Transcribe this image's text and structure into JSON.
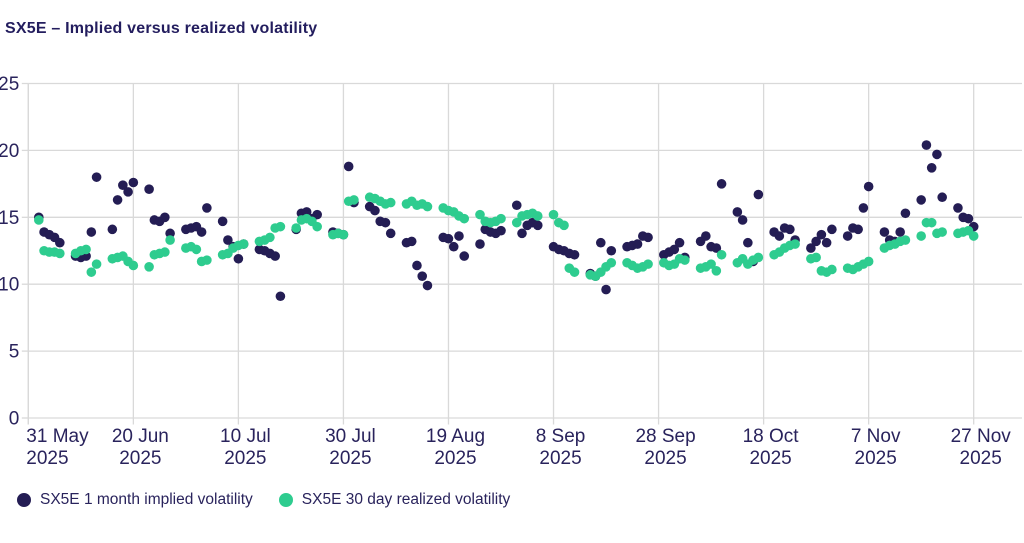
{
  "title": "SX5E – Implied versus realized volatility",
  "colors": {
    "implied": "#241d54",
    "realized": "#2ecc8f",
    "axis_text": "#29235c",
    "grid": "#d9d9d9",
    "background": "#ffffff"
  },
  "chart_data": {
    "type": "scatter",
    "title": "SX5E – Implied versus realized volatility",
    "xlabel": "",
    "ylabel": "",
    "x_unit": "calendar days since 31 May 2025",
    "ylim": [
      0,
      25
    ],
    "y_ticks": [
      0,
      5,
      10,
      15,
      20,
      25
    ],
    "x_tick_days": [
      0,
      20,
      40,
      60,
      80,
      100,
      120,
      140,
      160,
      180
    ],
    "x_tick_labels": [
      [
        "31 May",
        "2025"
      ],
      [
        "20 Jun",
        "2025"
      ],
      [
        "10 Jul",
        "2025"
      ],
      [
        "30 Jul",
        "2025"
      ],
      [
        "19 Aug",
        "2025"
      ],
      [
        "8 Sep",
        "2025"
      ],
      [
        "28 Sep",
        "2025"
      ],
      [
        "18 Oct",
        "2025"
      ],
      [
        "7 Nov",
        "2025"
      ],
      [
        "27 Nov",
        "2025"
      ]
    ],
    "grid": true,
    "legend_position": "bottom-left",
    "series": [
      {
        "name": "SX5E 1 month implied volatility",
        "color": "#241d54",
        "points": [
          [
            2,
            15.0
          ],
          [
            3,
            13.9
          ],
          [
            4,
            13.7
          ],
          [
            5,
            13.5
          ],
          [
            6,
            13.1
          ],
          [
            9,
            12.1
          ],
          [
            10,
            12.0
          ],
          [
            11,
            12.1
          ],
          [
            12,
            13.9
          ],
          [
            13,
            18.0
          ],
          [
            16,
            14.1
          ],
          [
            17,
            16.3
          ],
          [
            18,
            17.4
          ],
          [
            19,
            16.9
          ],
          [
            20,
            17.6
          ],
          [
            23,
            17.1
          ],
          [
            24,
            14.8
          ],
          [
            25,
            14.7
          ],
          [
            26,
            15.0
          ],
          [
            27,
            13.8
          ],
          [
            30,
            14.1
          ],
          [
            31,
            14.2
          ],
          [
            32,
            14.3
          ],
          [
            33,
            13.9
          ],
          [
            34,
            15.7
          ],
          [
            37,
            14.7
          ],
          [
            38,
            13.3
          ],
          [
            39,
            12.8
          ],
          [
            40,
            11.9
          ],
          [
            41,
            13.0
          ],
          [
            44,
            12.6
          ],
          [
            45,
            12.5
          ],
          [
            46,
            12.3
          ],
          [
            47,
            12.1
          ],
          [
            48,
            9.1
          ],
          [
            51,
            14.1
          ],
          [
            52,
            15.3
          ],
          [
            53,
            15.4
          ],
          [
            54,
            14.9
          ],
          [
            55,
            15.2
          ],
          [
            58,
            13.9
          ],
          [
            59,
            13.8
          ],
          [
            60,
            13.7
          ],
          [
            61,
            18.8
          ],
          [
            62,
            16.1
          ],
          [
            65,
            15.8
          ],
          [
            66,
            15.5
          ],
          [
            67,
            14.7
          ],
          [
            68,
            14.6
          ],
          [
            69,
            13.8
          ],
          [
            72,
            13.1
          ],
          [
            73,
            13.2
          ],
          [
            74,
            11.4
          ],
          [
            75,
            10.6
          ],
          [
            76,
            9.9
          ],
          [
            79,
            13.5
          ],
          [
            80,
            13.4
          ],
          [
            81,
            12.8
          ],
          [
            82,
            13.6
          ],
          [
            83,
            12.1
          ],
          [
            86,
            13.0
          ],
          [
            87,
            14.1
          ],
          [
            88,
            13.9
          ],
          [
            89,
            13.8
          ],
          [
            90,
            14.0
          ],
          [
            93,
            15.9
          ],
          [
            94,
            13.8
          ],
          [
            95,
            14.4
          ],
          [
            96,
            14.6
          ],
          [
            97,
            14.4
          ],
          [
            100,
            12.8
          ],
          [
            101,
            12.6
          ],
          [
            102,
            12.5
          ],
          [
            103,
            12.3
          ],
          [
            104,
            12.2
          ],
          [
            107,
            10.8
          ],
          [
            108,
            10.6
          ],
          [
            109,
            13.1
          ],
          [
            110,
            9.6
          ],
          [
            111,
            12.5
          ],
          [
            114,
            12.8
          ],
          [
            115,
            12.9
          ],
          [
            116,
            13.0
          ],
          [
            117,
            13.6
          ],
          [
            118,
            13.5
          ],
          [
            121,
            12.2
          ],
          [
            122,
            12.4
          ],
          [
            123,
            12.6
          ],
          [
            124,
            13.1
          ],
          [
            125,
            12.0
          ],
          [
            128,
            13.2
          ],
          [
            129,
            13.6
          ],
          [
            130,
            12.8
          ],
          [
            131,
            12.7
          ],
          [
            132,
            17.5
          ],
          [
            135,
            15.4
          ],
          [
            136,
            14.8
          ],
          [
            137,
            13.1
          ],
          [
            138,
            11.7
          ],
          [
            139,
            16.7
          ],
          [
            142,
            13.9
          ],
          [
            143,
            13.6
          ],
          [
            144,
            14.2
          ],
          [
            145,
            14.1
          ],
          [
            146,
            13.3
          ],
          [
            149,
            12.7
          ],
          [
            150,
            13.2
          ],
          [
            151,
            13.7
          ],
          [
            152,
            13.1
          ],
          [
            153,
            14.1
          ],
          [
            156,
            13.6
          ],
          [
            157,
            14.2
          ],
          [
            158,
            14.1
          ],
          [
            159,
            15.7
          ],
          [
            160,
            17.3
          ],
          [
            163,
            13.9
          ],
          [
            164,
            13.3
          ],
          [
            165,
            13.2
          ],
          [
            166,
            13.9
          ],
          [
            167,
            15.3
          ],
          [
            170,
            16.3
          ],
          [
            171,
            20.4
          ],
          [
            172,
            18.7
          ],
          [
            173,
            19.7
          ],
          [
            174,
            16.5
          ],
          [
            177,
            15.7
          ],
          [
            178,
            15.0
          ],
          [
            179,
            14.9
          ],
          [
            180,
            14.3
          ]
        ]
      },
      {
        "name": "SX5E 30 day realized volatility",
        "color": "#2ecc8f",
        "points": [
          [
            2,
            14.8
          ],
          [
            3,
            12.5
          ],
          [
            4,
            12.4
          ],
          [
            5,
            12.4
          ],
          [
            6,
            12.3
          ],
          [
            9,
            12.3
          ],
          [
            10,
            12.5
          ],
          [
            11,
            12.6
          ],
          [
            12,
            10.9
          ],
          [
            13,
            11.5
          ],
          [
            16,
            11.9
          ],
          [
            17,
            12.0
          ],
          [
            18,
            12.1
          ],
          [
            19,
            11.7
          ],
          [
            20,
            11.4
          ],
          [
            23,
            11.3
          ],
          [
            24,
            12.2
          ],
          [
            25,
            12.3
          ],
          [
            26,
            12.4
          ],
          [
            27,
            13.3
          ],
          [
            30,
            12.7
          ],
          [
            31,
            12.8
          ],
          [
            32,
            12.6
          ],
          [
            33,
            11.7
          ],
          [
            34,
            11.8
          ],
          [
            37,
            12.2
          ],
          [
            38,
            12.3
          ],
          [
            39,
            12.7
          ],
          [
            40,
            12.9
          ],
          [
            41,
            13.0
          ],
          [
            44,
            13.2
          ],
          [
            45,
            13.3
          ],
          [
            46,
            13.5
          ],
          [
            47,
            14.2
          ],
          [
            48,
            14.3
          ],
          [
            51,
            14.2
          ],
          [
            52,
            14.8
          ],
          [
            53,
            14.9
          ],
          [
            54,
            14.7
          ],
          [
            55,
            14.3
          ],
          [
            58,
            13.7
          ],
          [
            59,
            13.8
          ],
          [
            60,
            13.7
          ],
          [
            61,
            16.2
          ],
          [
            62,
            16.3
          ],
          [
            65,
            16.5
          ],
          [
            66,
            16.4
          ],
          [
            67,
            16.2
          ],
          [
            68,
            16.0
          ],
          [
            69,
            16.1
          ],
          [
            72,
            16.0
          ],
          [
            73,
            16.2
          ],
          [
            74,
            15.9
          ],
          [
            75,
            16.0
          ],
          [
            76,
            15.8
          ],
          [
            79,
            15.7
          ],
          [
            80,
            15.5
          ],
          [
            81,
            15.4
          ],
          [
            82,
            15.1
          ],
          [
            83,
            14.9
          ],
          [
            86,
            15.2
          ],
          [
            87,
            14.7
          ],
          [
            88,
            14.6
          ],
          [
            89,
            14.7
          ],
          [
            90,
            14.9
          ],
          [
            93,
            14.6
          ],
          [
            94,
            15.1
          ],
          [
            95,
            15.2
          ],
          [
            96,
            15.3
          ],
          [
            97,
            15.1
          ],
          [
            100,
            15.2
          ],
          [
            101,
            14.6
          ],
          [
            102,
            14.4
          ],
          [
            103,
            11.2
          ],
          [
            104,
            10.9
          ],
          [
            107,
            10.7
          ],
          [
            108,
            10.6
          ],
          [
            109,
            10.9
          ],
          [
            110,
            11.3
          ],
          [
            111,
            11.6
          ],
          [
            114,
            11.6
          ],
          [
            115,
            11.4
          ],
          [
            116,
            11.2
          ],
          [
            117,
            11.3
          ],
          [
            118,
            11.5
          ],
          [
            121,
            11.6
          ],
          [
            122,
            11.4
          ],
          [
            123,
            11.5
          ],
          [
            124,
            11.9
          ],
          [
            125,
            11.8
          ],
          [
            128,
            11.2
          ],
          [
            129,
            11.3
          ],
          [
            130,
            11.5
          ],
          [
            131,
            11.0
          ],
          [
            132,
            12.2
          ],
          [
            135,
            11.6
          ],
          [
            136,
            11.9
          ],
          [
            137,
            11.5
          ],
          [
            138,
            11.8
          ],
          [
            139,
            12.0
          ],
          [
            142,
            12.2
          ],
          [
            143,
            12.4
          ],
          [
            144,
            12.7
          ],
          [
            145,
            12.9
          ],
          [
            146,
            13.0
          ],
          [
            149,
            11.9
          ],
          [
            150,
            12.0
          ],
          [
            151,
            11.0
          ],
          [
            152,
            10.9
          ],
          [
            153,
            11.1
          ],
          [
            156,
            11.2
          ],
          [
            157,
            11.1
          ],
          [
            158,
            11.3
          ],
          [
            159,
            11.5
          ],
          [
            160,
            11.7
          ],
          [
            163,
            12.7
          ],
          [
            164,
            12.9
          ],
          [
            165,
            13.0
          ],
          [
            166,
            13.2
          ],
          [
            167,
            13.3
          ],
          [
            170,
            13.6
          ],
          [
            171,
            14.6
          ],
          [
            172,
            14.6
          ],
          [
            173,
            13.8
          ],
          [
            174,
            13.9
          ],
          [
            177,
            13.8
          ],
          [
            178,
            13.9
          ],
          [
            179,
            14.0
          ],
          [
            180,
            13.6
          ]
        ]
      }
    ]
  },
  "legend": {
    "items": [
      {
        "label": "SX5E 1 month implied volatility"
      },
      {
        "label": "SX5E 30 day realized volatility"
      }
    ]
  }
}
